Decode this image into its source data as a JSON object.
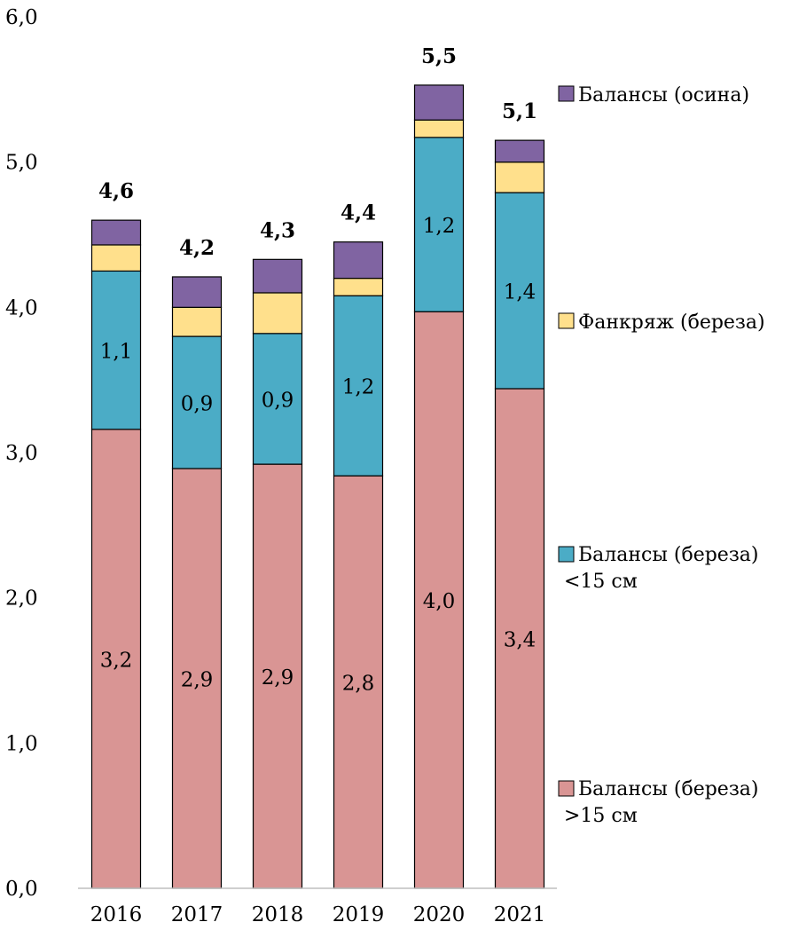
{
  "chart_data": {
    "type": "bar",
    "stacked": true,
    "categories": [
      "2016",
      "2017",
      "2018",
      "2019",
      "2020",
      "2021"
    ],
    "ylim": [
      0,
      6
    ],
    "y_ticks": [
      "0,0",
      "1,0",
      "2,0",
      "3,0",
      "4,0",
      "5,0",
      "6,0"
    ],
    "grid": false,
    "legend_position": "right",
    "series": [
      {
        "name": "Балансы (береза) >15 см",
        "color": "#d99594",
        "values": [
          3.16,
          2.89,
          2.92,
          2.84,
          3.97,
          3.44
        ],
        "labels": [
          "3,2",
          "2,9",
          "2,9",
          "2,8",
          "4,0",
          "3,4"
        ]
      },
      {
        "name": "Балансы (береза) <15 см",
        "color": "#4bacc6",
        "values": [
          1.09,
          0.91,
          0.9,
          1.24,
          1.2,
          1.35
        ],
        "labels": [
          "1,1",
          "0,9",
          "0,9",
          "1,2",
          "1,2",
          "1,4"
        ]
      },
      {
        "name": "Фанкряж (береза)",
        "color": "#ffe08c",
        "values": [
          0.18,
          0.2,
          0.28,
          0.12,
          0.12,
          0.21
        ],
        "labels": [
          "",
          "",
          "",
          "",
          "",
          ""
        ]
      },
      {
        "name": "Балансы (осина)",
        "color": "#8064a2",
        "values": [
          0.17,
          0.21,
          0.23,
          0.25,
          0.24,
          0.15
        ],
        "labels": [
          "",
          "",
          "",
          "",
          "",
          ""
        ]
      }
    ],
    "totals": [
      "4,6",
      "4,2",
      "4,3",
      "4,4",
      "5,5",
      "5,1"
    ],
    "legend": [
      {
        "lines": [
          "Балансы (осина)"
        ],
        "color": "#8064a2"
      },
      {
        "lines": [
          "Фанкряж (береза)"
        ],
        "color": "#ffe08c"
      },
      {
        "lines": [
          "Балансы (береза)",
          "<15 см"
        ],
        "color": "#4bacc6"
      },
      {
        "lines": [
          "Балансы (береза)",
          ">15 см"
        ],
        "color": "#d99594"
      }
    ]
  }
}
